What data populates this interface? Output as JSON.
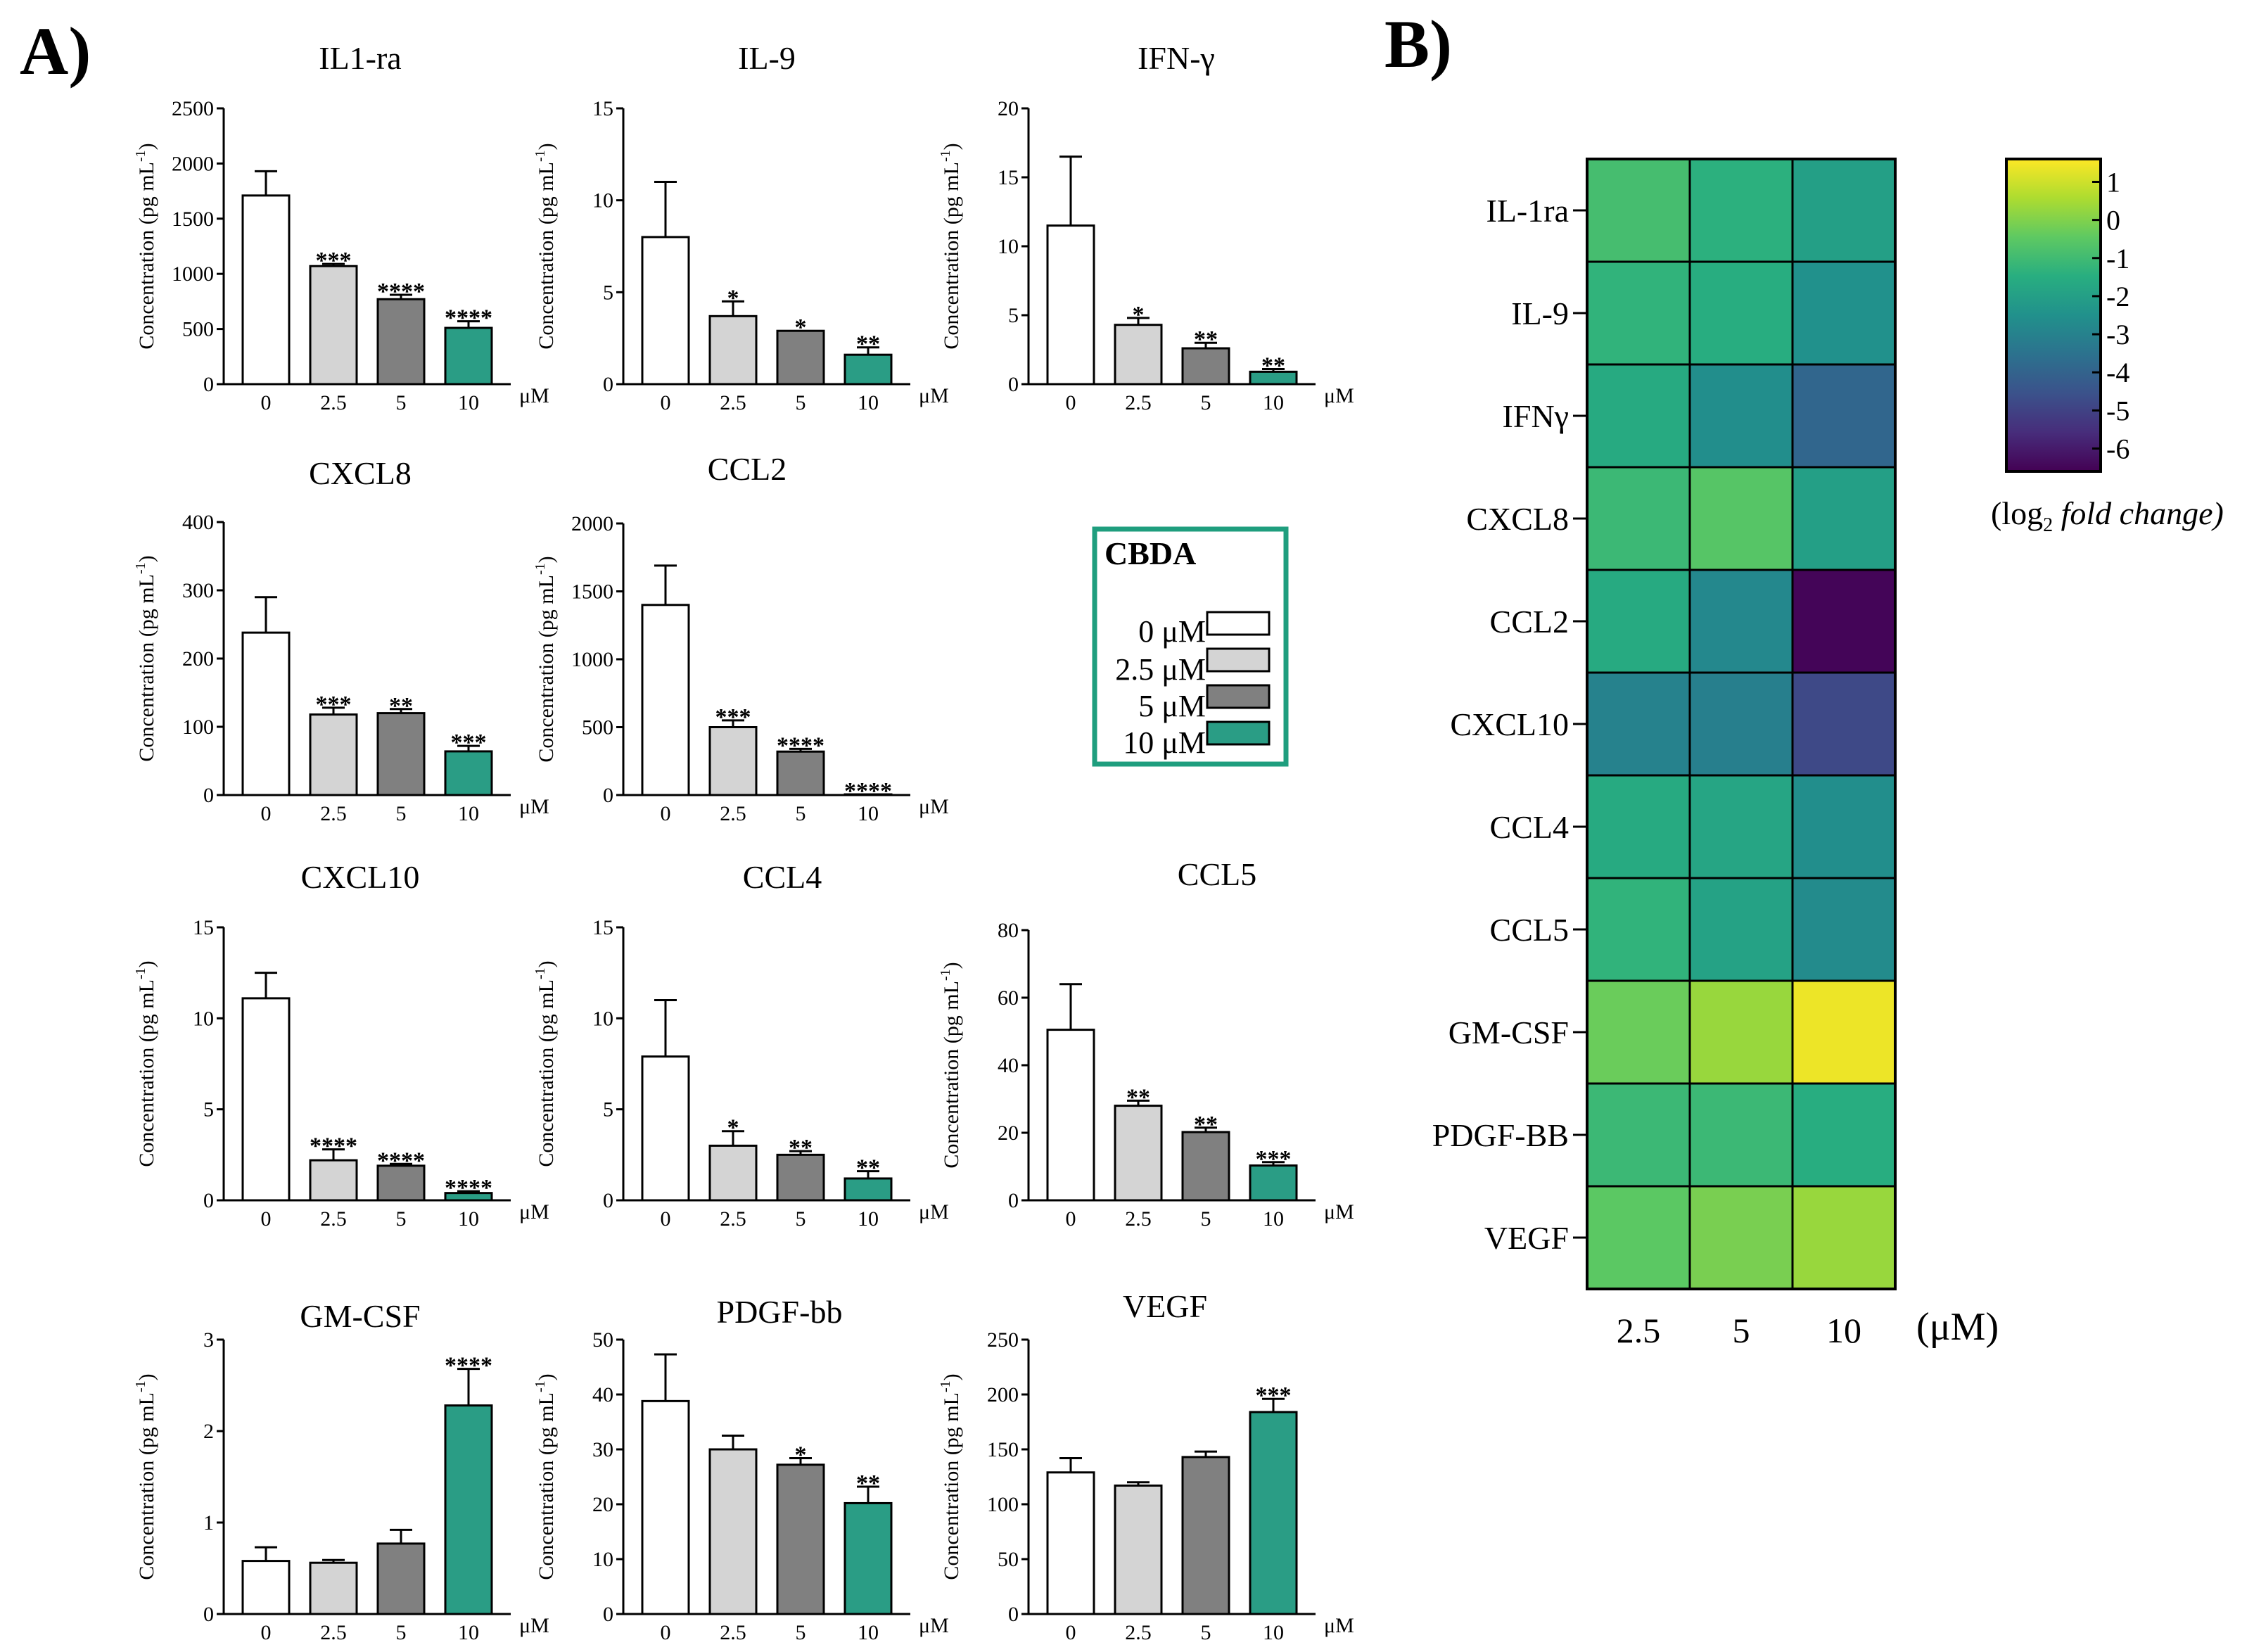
{
  "panel_labels": {
    "a": "A)",
    "b": "B)"
  },
  "colors": {
    "c0": "#ffffff",
    "c25": "#d4d4d4",
    "c5": "#808080",
    "c10": "#2a9d85",
    "legend_border": "#1f9e7e"
  },
  "bar_common": {
    "ylabel_main": "Concentration (pg mL",
    "ylabel_sup": "-1",
    "ylabel_close": ")",
    "unit": "μM",
    "categories": [
      "0",
      "2.5",
      "5",
      "10"
    ]
  },
  "legend": {
    "title": "CBDA",
    "entries": [
      "0 μM",
      "2.5 μM",
      "5 μM",
      "10 μM"
    ]
  },
  "colorbar": {
    "ticks": [
      "1",
      "0",
      "-1",
      "-2",
      "-3",
      "-4",
      "-5",
      "-6"
    ],
    "label_prefix": "(log",
    "label_sub": "2",
    "label_suffix": " fold change)",
    "range": [
      -6.6,
      1.6
    ]
  },
  "chart_data": [
    {
      "type": "bar",
      "title": "IL1-ra",
      "categories": [
        "0",
        "2.5",
        "5",
        "10"
      ],
      "values": [
        1710,
        1070,
        770,
        510
      ],
      "errors": [
        220,
        20,
        40,
        60
      ],
      "significance": [
        "",
        "***",
        "****",
        "****"
      ],
      "ylim": [
        0,
        2500
      ],
      "yticks": [
        0,
        500,
        1000,
        1500,
        2000,
        2500
      ],
      "xlabel": "μM",
      "ylabel": "Concentration (pg mL-1)"
    },
    {
      "type": "bar",
      "title": "IL-9",
      "categories": [
        "0",
        "2.5",
        "5",
        "10"
      ],
      "values": [
        8.0,
        3.7,
        2.9,
        1.6
      ],
      "errors": [
        3.0,
        0.8,
        0.0,
        0.4
      ],
      "significance": [
        "",
        "*",
        "*",
        "**"
      ],
      "ylim": [
        0,
        15
      ],
      "yticks": [
        0,
        5,
        10,
        15
      ],
      "xlabel": "μM",
      "ylabel": "Concentration (pg mL-1)"
    },
    {
      "type": "bar",
      "title": "IFN-γ",
      "categories": [
        "0",
        "2.5",
        "5",
        "10"
      ],
      "values": [
        11.5,
        4.3,
        2.6,
        0.9
      ],
      "errors": [
        5.0,
        0.5,
        0.4,
        0.2
      ],
      "significance": [
        "",
        "*",
        "**",
        "**"
      ],
      "ylim": [
        0,
        20
      ],
      "yticks": [
        0,
        5,
        10,
        15,
        20
      ],
      "xlabel": "μM",
      "ylabel": "Concentration (pg mL-1)"
    },
    {
      "type": "bar",
      "title": "CXCL8",
      "categories": [
        "0",
        "2.5",
        "5",
        "10"
      ],
      "values": [
        238,
        118,
        120,
        64
      ],
      "errors": [
        52,
        10,
        6,
        8
      ],
      "significance": [
        "",
        "***",
        "**",
        "***"
      ],
      "ylim": [
        0,
        400
      ],
      "yticks": [
        0,
        100,
        200,
        300,
        400
      ],
      "xlabel": "μM",
      "ylabel": "Concentration (pg mL-1)"
    },
    {
      "type": "bar",
      "title": "CCL2",
      "categories": [
        "0",
        "2.5",
        "5",
        "10"
      ],
      "values": [
        1400,
        500,
        320,
        5
      ],
      "errors": [
        290,
        50,
        20,
        0
      ],
      "significance": [
        "",
        "***",
        "****",
        "****"
      ],
      "ylim": [
        0,
        2000
      ],
      "yticks": [
        0,
        500,
        1000,
        1500,
        2000
      ],
      "xlabel": "μM",
      "ylabel": "Concentration (pg mL-1)"
    },
    {
      "type": "bar",
      "title": "CXCL10",
      "categories": [
        "0",
        "2.5",
        "5",
        "10"
      ],
      "values": [
        11.1,
        2.2,
        1.9,
        0.4
      ],
      "errors": [
        1.4,
        0.6,
        0.1,
        0.1
      ],
      "significance": [
        "",
        "****",
        "****",
        "****"
      ],
      "ylim": [
        0,
        15
      ],
      "yticks": [
        0,
        5,
        10,
        15
      ],
      "xlabel": "μM",
      "ylabel": "Concentration (pg mL-1)"
    },
    {
      "type": "bar",
      "title": "CCL4",
      "categories": [
        "0",
        "2.5",
        "5",
        "10"
      ],
      "values": [
        7.9,
        3.0,
        2.5,
        1.2
      ],
      "errors": [
        3.1,
        0.8,
        0.2,
        0.4
      ],
      "significance": [
        "",
        "*",
        "**",
        "**"
      ],
      "ylim": [
        0,
        15
      ],
      "yticks": [
        0,
        5,
        10,
        15
      ],
      "xlabel": "μM",
      "ylabel": "Concentration (pg mL-1)"
    },
    {
      "type": "bar",
      "title": "CCL5",
      "categories": [
        "0",
        "2.5",
        "5",
        "10"
      ],
      "values": [
        50.5,
        28.0,
        20.2,
        10.3
      ],
      "errors": [
        13.5,
        1.5,
        1.3,
        1.0
      ],
      "significance": [
        "",
        "**",
        "**",
        "***"
      ],
      "ylim": [
        0,
        80
      ],
      "yticks": [
        0,
        20,
        40,
        60,
        80
      ],
      "xlabel": "μM",
      "ylabel": "Concentration (pg mL-1)"
    },
    {
      "type": "bar",
      "title": "GM-CSF",
      "categories": [
        "0",
        "2.5",
        "5",
        "10"
      ],
      "values": [
        0.58,
        0.56,
        0.77,
        2.28
      ],
      "errors": [
        0.15,
        0.03,
        0.15,
        0.4
      ],
      "significance": [
        "",
        "",
        "",
        "****"
      ],
      "ylim": [
        0,
        3
      ],
      "yticks": [
        0,
        1,
        2,
        3
      ],
      "xlabel": "μM",
      "ylabel": "Concentration (pg mL-1)"
    },
    {
      "type": "bar",
      "title": "PDGF-bb",
      "categories": [
        "0",
        "2.5",
        "5",
        "10"
      ],
      "values": [
        38.8,
        30.0,
        27.2,
        20.2
      ],
      "errors": [
        8.5,
        2.5,
        1.2,
        3.0
      ],
      "significance": [
        "",
        "",
        "*",
        "**"
      ],
      "ylim": [
        0,
        50
      ],
      "yticks": [
        0,
        10,
        20,
        30,
        40,
        50
      ],
      "xlabel": "μM",
      "ylabel": "Concentration (pg mL-1)"
    },
    {
      "type": "bar",
      "title": "VEGF",
      "categories": [
        "0",
        "2.5",
        "5",
        "10"
      ],
      "values": [
        129,
        117,
        143,
        184
      ],
      "errors": [
        13,
        3,
        5,
        12
      ],
      "significance": [
        "",
        "",
        "",
        "***"
      ],
      "ylim": [
        0,
        250
      ],
      "yticks": [
        0,
        50,
        100,
        150,
        200,
        250
      ],
      "xlabel": "μM",
      "ylabel": "Concentration (pg mL-1)"
    },
    {
      "type": "heatmap",
      "rows": [
        "IL-1ra",
        "IL-9",
        "IFNγ",
        "CXCL8",
        "CCL2",
        "CXCL10",
        "CCL4",
        "CCL5",
        "GM-CSF",
        "PDGF-BB",
        "VEGF"
      ],
      "columns": [
        "2.5",
        "5",
        "10"
      ],
      "xlabel": "(μM)",
      "colorbar_label": "(log2 fold change)",
      "zlim": [
        -6.6,
        1.6
      ],
      "colormap": "viridis",
      "values": [
        [
          -0.9,
          -1.4,
          -2.0
        ],
        [
          -1.3,
          -1.5,
          -2.5
        ],
        [
          -1.6,
          -2.6,
          -3.9
        ],
        [
          -1.1,
          -0.6,
          -2.0
        ],
        [
          -1.6,
          -2.8,
          -6.5
        ],
        [
          -3.0,
          -3.1,
          -4.8
        ],
        [
          -1.6,
          -1.8,
          -2.6
        ],
        [
          -1.3,
          -1.9,
          -2.7
        ],
        [
          -0.3,
          0.3,
          1.4
        ],
        [
          -1.1,
          -1.1,
          -1.5
        ],
        [
          -0.5,
          -0.1,
          0.3
        ]
      ]
    }
  ]
}
